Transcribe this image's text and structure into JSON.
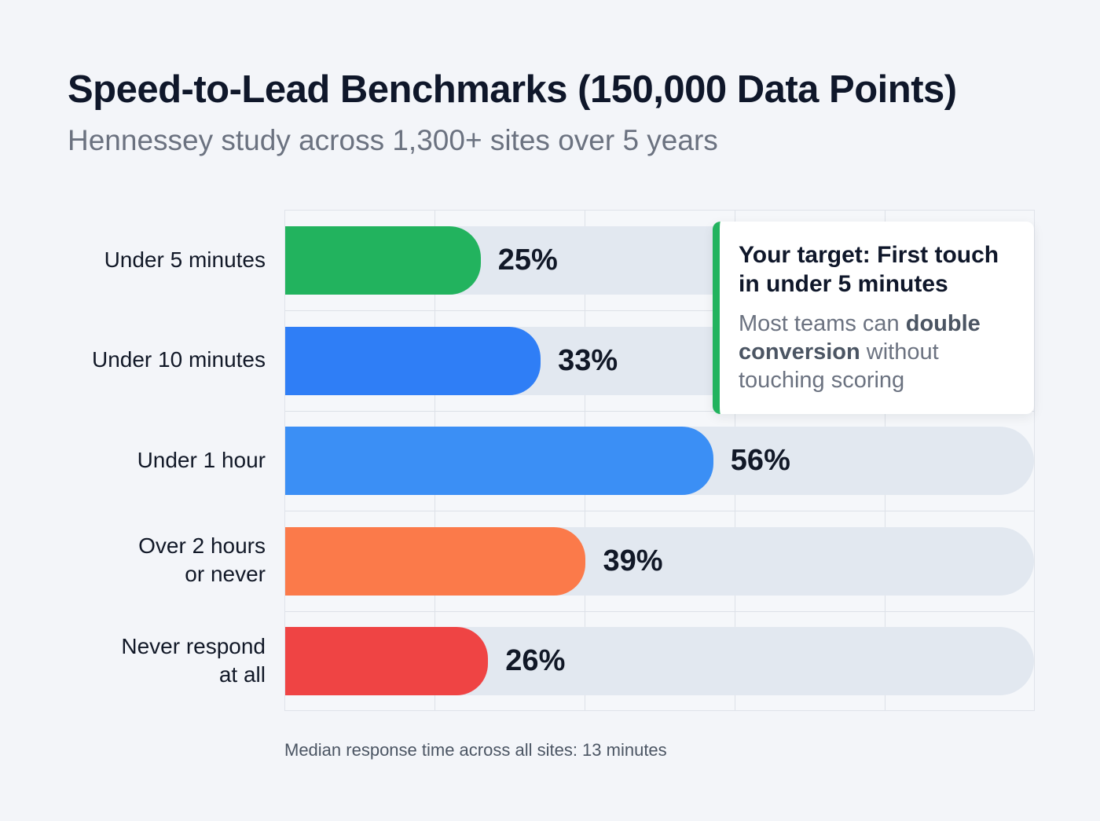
{
  "chart_data": {
    "type": "bar",
    "orientation": "horizontal",
    "title": "Speed-to-Lead Benchmarks (150,000 Data Points)",
    "subtitle": "Hennessey study across 1,300+ sites over 5 years",
    "categories": [
      "Under 5 minutes",
      "Under 10 minutes",
      "Under 1 hour",
      "Over 2 hours\nor never",
      "Never respond\nat all"
    ],
    "values": [
      25,
      33,
      56,
      39,
      26
    ],
    "data_labels": [
      "25%",
      "33%",
      "56%",
      "39%",
      "26%"
    ],
    "colors": [
      "#22b35e",
      "#2f7ef6",
      "#3b8ff5",
      "#fb7a4a",
      "#ef4444"
    ],
    "xlim": [
      0,
      100
    ],
    "grid": true,
    "xlabel": "",
    "ylabel": ""
  },
  "callout": {
    "heading": "Your target: First touch in under 5 minutes",
    "body_pre": "Most teams can ",
    "body_bold": "double conversion",
    "body_post": " without touching scoring",
    "accent": "#22b35e"
  },
  "footnote": "Median response time across all sites: 13 minutes"
}
